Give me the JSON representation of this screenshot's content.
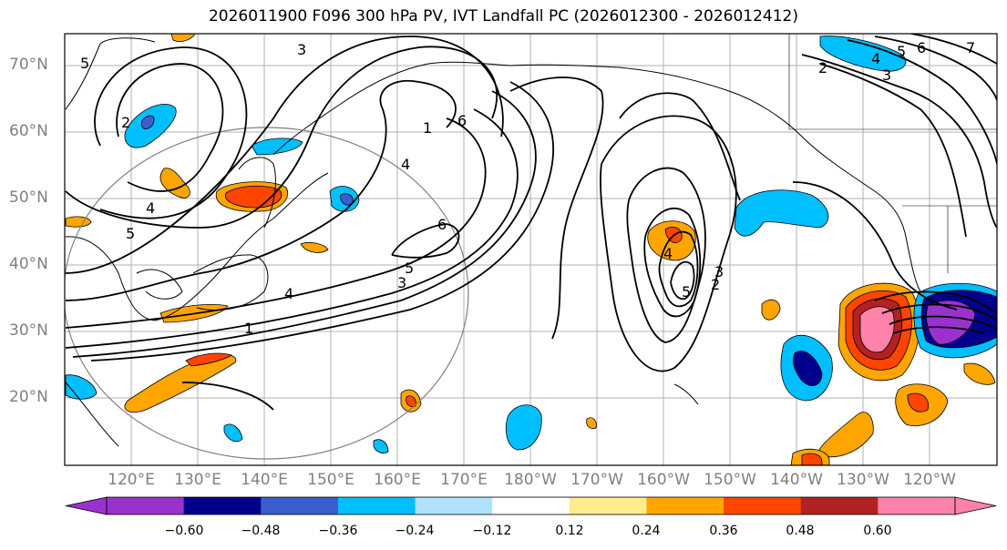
{
  "title": "2026011900 F096 300 hPa PV, IVT Landfall PC (2026012300 - 2026012412)",
  "lat_labels": [
    "70°N",
    "60°N",
    "50°N",
    "40°N",
    "30°N",
    "20°N"
  ],
  "lon_labels": [
    "120°E",
    "130°E",
    "140°E",
    "150°E",
    "160°E",
    "170°E",
    "180°W",
    "170°W",
    "160°W",
    "150°W",
    "140°W",
    "130°W",
    "120°W"
  ],
  "colorbar": {
    "colors": [
      "#9932cc",
      "#00008b",
      "#3a5fcd",
      "#00bfff",
      "#b0e2ff",
      "#ffffff",
      "#ffec8b",
      "#ffa500",
      "#ff4500",
      "#b22222",
      "#ff82ab"
    ],
    "tick_labels": [
      "−0.60",
      "−0.48",
      "−0.36",
      "−0.24",
      "−0.12",
      "0.12",
      "0.24",
      "0.36",
      "0.48",
      "0.60"
    ]
  },
  "contour_labels": [
    "5",
    "2",
    "3",
    "1",
    "6",
    "4",
    "5",
    "4",
    "6",
    "5",
    "3",
    "4",
    "1",
    "4",
    "5",
    "2",
    "3",
    "4",
    "5",
    "6",
    "7",
    "2",
    "3"
  ]
}
